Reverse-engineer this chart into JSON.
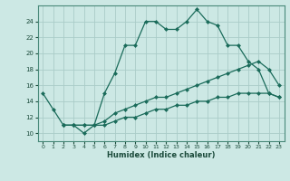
{
  "xlabel": "Humidex (Indice chaleur)",
  "background_color": "#cce8e4",
  "grid_color": "#aaccc8",
  "line_color": "#1a6b5a",
  "xlim": [
    -0.5,
    23.5
  ],
  "ylim": [
    9,
    26
  ],
  "yticks": [
    10,
    12,
    14,
    16,
    18,
    20,
    22,
    24
  ],
  "xticks": [
    0,
    1,
    2,
    3,
    4,
    5,
    6,
    7,
    8,
    9,
    10,
    11,
    12,
    13,
    14,
    15,
    16,
    17,
    18,
    19,
    20,
    21,
    22,
    23
  ],
  "line1_x": [
    0,
    1,
    2,
    3,
    4,
    5,
    6,
    7,
    8,
    9,
    10,
    11,
    12,
    13,
    14,
    15,
    16,
    17,
    18,
    19,
    20,
    21,
    22,
    23
  ],
  "line1_y": [
    15,
    13,
    11,
    11,
    10,
    11,
    15,
    17.5,
    21,
    21,
    24,
    24,
    23,
    23,
    24,
    25.5,
    24,
    23.5,
    21,
    21,
    19,
    18,
    15,
    14.5
  ],
  "line2_x": [
    2,
    3,
    4,
    5,
    6,
    7,
    8,
    9,
    10,
    11,
    12,
    13,
    14,
    15,
    16,
    17,
    18,
    19,
    20,
    21,
    22,
    23
  ],
  "line2_y": [
    11,
    11,
    11,
    11,
    11.5,
    12.5,
    13,
    13.5,
    14,
    14.5,
    14.5,
    15,
    15.5,
    16,
    16.5,
    17,
    17.5,
    18,
    18.5,
    19,
    18,
    16
  ],
  "line3_x": [
    2,
    3,
    4,
    5,
    6,
    7,
    8,
    9,
    10,
    11,
    12,
    13,
    14,
    15,
    16,
    17,
    18,
    19,
    20,
    21,
    22,
    23
  ],
  "line3_y": [
    11,
    11,
    11,
    11,
    11,
    11.5,
    12,
    12,
    12.5,
    13,
    13,
    13.5,
    13.5,
    14,
    14,
    14.5,
    14.5,
    15,
    15,
    15,
    15,
    14.5
  ]
}
